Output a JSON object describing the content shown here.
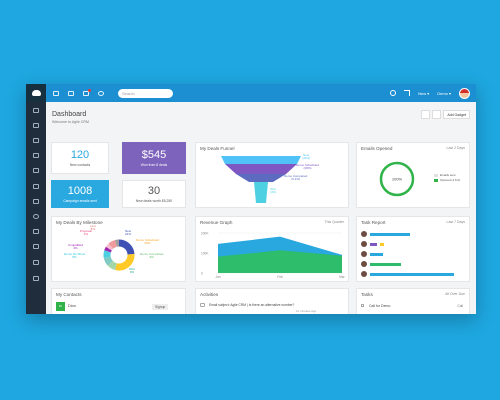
{
  "topbar": {
    "search_placeholder": "Search",
    "new_label": "New ▾",
    "user_label": "Demo ▾"
  },
  "page": {
    "title": "Dashboard",
    "subtitle": "Welcome to Agile CRM",
    "add_gadget": "Add Gadget"
  },
  "tiles": {
    "new_contacts": {
      "value": "120",
      "label": "New contacts"
    },
    "won": {
      "value": "$545",
      "label": "Won from 8 deals"
    },
    "emails": {
      "value": "1008",
      "label": "Campaign emails sent"
    },
    "new_deals": {
      "value": "30",
      "label": "New deals worth $5,250"
    }
  },
  "funnel": {
    "title": "My Deals Funnel",
    "stages": [
      {
        "name": "New",
        "pct": "(44%)",
        "color": "#4fc3f7"
      },
      {
        "name": "Demo Scheduled",
        "pct": "(28%)",
        "color": "#7e57c2"
      },
      {
        "name": "Demo Completed",
        "pct": "(5.4%)",
        "color": "#5c6bc0"
      },
      {
        "name": "Won",
        "pct": "(4%)",
        "color": "#4dd0e1"
      }
    ]
  },
  "emails_opened": {
    "title": "Emails Opened",
    "period": "Last 2 Days",
    "value": "100%",
    "legend": [
      "Emails sent",
      "Opened (1.6.0)"
    ],
    "colors": [
      "#e0e0e0",
      "#2fb34a"
    ]
  },
  "milestone": {
    "title": "My Deals By Milestone",
    "segments": [
      {
        "name": "New",
        "pct": "24%",
        "value": 24,
        "color": "#3f51b5"
      },
      {
        "name": "Demo Scheduled",
        "pct": "30%",
        "value": 30,
        "color": "#ffca28"
      },
      {
        "name": "Demo Completed",
        "pct": "9%",
        "value": 9,
        "color": "#a5d6a7"
      },
      {
        "name": "Won",
        "pct": "9%",
        "value": 9,
        "color": "#80cbc4"
      },
      {
        "name": "Demo No Show",
        "pct": "8%",
        "value": 8,
        "color": "#4dd0e1"
      },
      {
        "name": "Unqualified",
        "pct": "4%",
        "value": 4,
        "color": "#9c27b0"
      },
      {
        "name": "Proposal",
        "pct": "4%",
        "value": 4,
        "color": "#f8bbd0"
      },
      {
        "name": "Lost",
        "pct": "8%",
        "value": 8,
        "color": "#ef9a9a"
      },
      {
        "name": "Other",
        "pct": "4%",
        "value": 4,
        "color": "#9e9e9e"
      }
    ]
  },
  "revenue": {
    "title": "Revenue Graph",
    "period": "This Quarter"
  },
  "chart_data": {
    "type": "area",
    "categories": [
      "Jan",
      "Feb",
      "Mar"
    ],
    "series": [
      {
        "values": [
          900,
          1250,
          950
        ],
        "color": "#2ebd6b"
      },
      {
        "values": [
          1600,
          2000,
          1000
        ],
        "color": "#29a8e0"
      }
    ],
    "yticks": [
      "200K",
      "100K",
      "0"
    ],
    "ylim": [
      0,
      2200
    ],
    "title": "",
    "xlabel": "",
    "ylabel": ""
  },
  "task_report": {
    "title": "Task Report",
    "period": "Last 7 Days",
    "rows": [
      {
        "value": 0.45,
        "color": "#29a8e0",
        "extra": 0.0
      },
      {
        "value": 0.05,
        "color": "#ffca28",
        "extra": 0.08
      },
      {
        "value": 0.15,
        "color": "#29a8e0",
        "extra": 0.0
      },
      {
        "value": 0.35,
        "color": "#2ebd6b",
        "extra": 0.0
      },
      {
        "value": 0.95,
        "color": "#29a8e0",
        "extra": 0.0
      }
    ]
  },
  "contacts": {
    "title": "My Contacts",
    "name": "Dion",
    "badge": "Signup",
    "initials": "DI"
  },
  "activities": {
    "title": "Activities",
    "line1": "Email subject: Agile CRM | Is there an alternative number?",
    "time": "11 minutes ago"
  },
  "tasks": {
    "title": "Tasks",
    "filter": "All Over Due",
    "item": "Call for Demo",
    "tag": "Call"
  }
}
